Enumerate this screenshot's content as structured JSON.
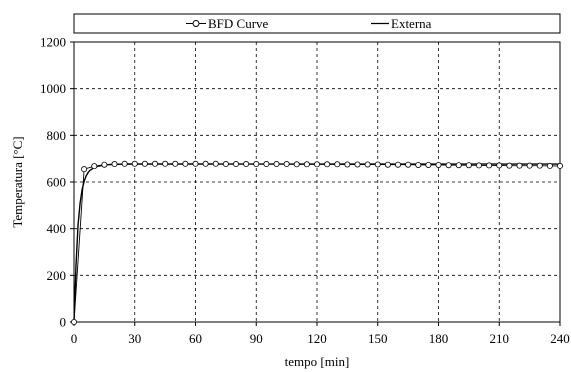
{
  "chart_data": {
    "type": "line",
    "xlabel": "tempo [min]",
    "ylabel": "Temperatura [°C]",
    "xlim": [
      0,
      240
    ],
    "ylim": [
      0,
      1200
    ],
    "x_ticks": [
      0,
      30,
      60,
      90,
      120,
      150,
      180,
      210,
      240
    ],
    "y_ticks": [
      0,
      200,
      400,
      600,
      800,
      1000,
      1200
    ],
    "x_tick_labels": [
      "0",
      "30",
      "60",
      "90",
      "120",
      "150",
      "180",
      "210",
      "240"
    ],
    "y_tick_labels": [
      "0",
      "200",
      "400",
      "600",
      "800",
      "1000",
      "1200"
    ],
    "grid": true,
    "legend_position": "top",
    "series": [
      {
        "name": "BFD Curve",
        "marker": "circle-open",
        "color": "#000000",
        "x": [
          0,
          5,
          10,
          15,
          20,
          25,
          30,
          35,
          40,
          45,
          50,
          55,
          60,
          65,
          70,
          75,
          80,
          85,
          90,
          95,
          100,
          105,
          110,
          115,
          120,
          125,
          130,
          135,
          140,
          145,
          150,
          155,
          160,
          165,
          170,
          175,
          180,
          185,
          190,
          195,
          200,
          205,
          210,
          215,
          220,
          225,
          230,
          235,
          240
        ],
        "y": [
          0,
          655,
          668,
          674,
          677,
          678,
          678,
          678,
          678,
          678,
          678,
          678,
          678,
          678,
          678,
          677,
          677,
          677,
          677,
          677,
          677,
          677,
          676,
          676,
          676,
          676,
          676,
          675,
          675,
          675,
          675,
          674,
          674,
          674,
          673,
          673,
          673,
          672,
          672,
          672,
          671,
          671,
          671,
          670,
          670,
          670,
          670,
          669,
          669
        ]
      },
      {
        "name": "Externa",
        "marker": "none",
        "color": "#000000",
        "x": [
          0,
          1,
          2,
          3,
          4,
          5,
          6,
          7,
          8,
          10,
          12,
          15,
          20,
          30,
          60,
          120,
          180,
          240
        ],
        "y": [
          0,
          245,
          416,
          509,
          567,
          603,
          626,
          641,
          651,
          662,
          668,
          673,
          676,
          677,
          677,
          677,
          677,
          677
        ]
      }
    ]
  }
}
